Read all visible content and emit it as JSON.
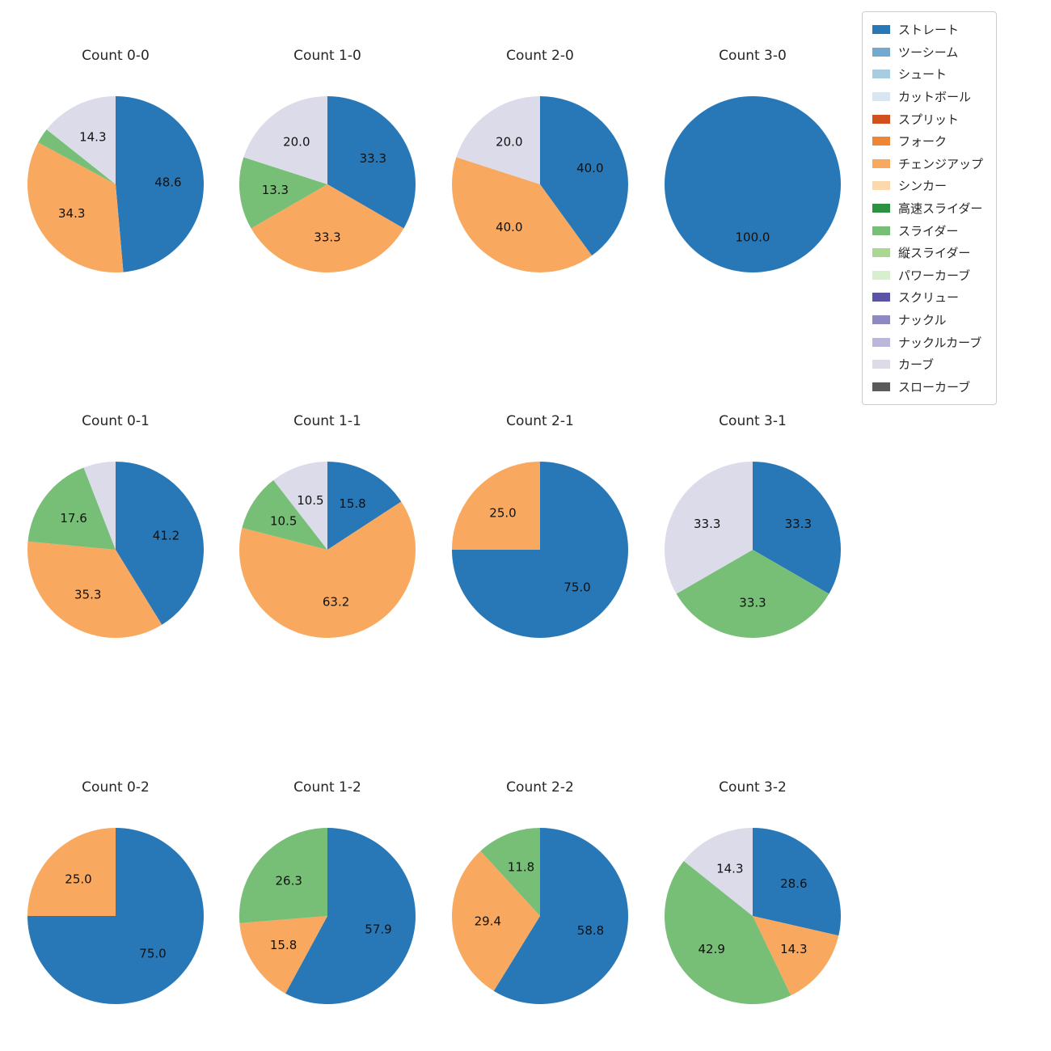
{
  "figure": {
    "background": "#ffffff"
  },
  "legend": {
    "items": [
      {
        "label": "ストレート",
        "color": "#2878b8"
      },
      {
        "label": "ツーシーム",
        "color": "#73a8d0"
      },
      {
        "label": "シュート",
        "color": "#a8cce0"
      },
      {
        "label": "カットボール",
        "color": "#d9e6f2"
      },
      {
        "label": "スプリット",
        "color": "#d2501e"
      },
      {
        "label": "フォーク",
        "color": "#ef8636"
      },
      {
        "label": "チェンジアップ",
        "color": "#f8a95f"
      },
      {
        "label": "シンカー",
        "color": "#fcd9ac"
      },
      {
        "label": "高速スライダー",
        "color": "#2c9141"
      },
      {
        "label": "スライダー",
        "color": "#77bf77"
      },
      {
        "label": "縦スライダー",
        "color": "#aad792"
      },
      {
        "label": "パワーカーブ",
        "color": "#d8efcf"
      },
      {
        "label": "スクリュー",
        "color": "#5b53a3"
      },
      {
        "label": "ナックル",
        "color": "#8e89c0"
      },
      {
        "label": "ナックルカーブ",
        "color": "#bab7d8"
      },
      {
        "label": "カーブ",
        "color": "#dcdbe9"
      },
      {
        "label": "スローカーブ",
        "color": "#5b5b5b"
      }
    ]
  },
  "chart_data": [
    {
      "type": "pie",
      "title": "Count 0-0",
      "slices": [
        {
          "label": "ストレート",
          "value": 48.6,
          "pct_label": "48.6"
        },
        {
          "label": "チェンジアップ",
          "value": 34.3,
          "pct_label": "34.3"
        },
        {
          "label": "スライダー",
          "value": 2.8,
          "pct_label": ""
        },
        {
          "label": "カーブ",
          "value": 14.3,
          "pct_label": "14.3"
        }
      ]
    },
    {
      "type": "pie",
      "title": "Count 1-0",
      "slices": [
        {
          "label": "ストレート",
          "value": 33.3,
          "pct_label": "33.3"
        },
        {
          "label": "チェンジアップ",
          "value": 33.3,
          "pct_label": "33.3"
        },
        {
          "label": "スライダー",
          "value": 13.3,
          "pct_label": "13.3"
        },
        {
          "label": "カーブ",
          "value": 20.0,
          "pct_label": "20.0"
        }
      ]
    },
    {
      "type": "pie",
      "title": "Count 2-0",
      "slices": [
        {
          "label": "ストレート",
          "value": 40.0,
          "pct_label": "40.0"
        },
        {
          "label": "チェンジアップ",
          "value": 40.0,
          "pct_label": "40.0"
        },
        {
          "label": "カーブ",
          "value": 20.0,
          "pct_label": "20.0"
        }
      ]
    },
    {
      "type": "pie",
      "title": "Count 3-0",
      "slices": [
        {
          "label": "ストレート",
          "value": 100.0,
          "pct_label": "100.0"
        }
      ]
    },
    {
      "type": "pie",
      "title": "Count 0-1",
      "slices": [
        {
          "label": "ストレート",
          "value": 41.2,
          "pct_label": "41.2"
        },
        {
          "label": "チェンジアップ",
          "value": 35.3,
          "pct_label": "35.3"
        },
        {
          "label": "スライダー",
          "value": 17.6,
          "pct_label": "17.6"
        },
        {
          "label": "カーブ",
          "value": 5.9,
          "pct_label": ""
        }
      ]
    },
    {
      "type": "pie",
      "title": "Count 1-1",
      "slices": [
        {
          "label": "ストレート",
          "value": 15.8,
          "pct_label": "15.8"
        },
        {
          "label": "チェンジアップ",
          "value": 63.2,
          "pct_label": "63.2"
        },
        {
          "label": "スライダー",
          "value": 10.5,
          "pct_label": "10.5"
        },
        {
          "label": "カーブ",
          "value": 10.5,
          "pct_label": "10.5"
        }
      ]
    },
    {
      "type": "pie",
      "title": "Count 2-1",
      "slices": [
        {
          "label": "ストレート",
          "value": 75.0,
          "pct_label": "75.0"
        },
        {
          "label": "チェンジアップ",
          "value": 25.0,
          "pct_label": "25.0"
        }
      ]
    },
    {
      "type": "pie",
      "title": "Count 3-1",
      "slices": [
        {
          "label": "ストレート",
          "value": 33.3,
          "pct_label": "33.3"
        },
        {
          "label": "スライダー",
          "value": 33.3,
          "pct_label": "33.3"
        },
        {
          "label": "カーブ",
          "value": 33.3,
          "pct_label": "33.3"
        }
      ]
    },
    {
      "type": "pie",
      "title": "Count 0-2",
      "slices": [
        {
          "label": "ストレート",
          "value": 75.0,
          "pct_label": "75.0"
        },
        {
          "label": "チェンジアップ",
          "value": 25.0,
          "pct_label": "25.0"
        }
      ]
    },
    {
      "type": "pie",
      "title": "Count 1-2",
      "slices": [
        {
          "label": "ストレート",
          "value": 57.9,
          "pct_label": "57.9"
        },
        {
          "label": "チェンジアップ",
          "value": 15.8,
          "pct_label": "15.8"
        },
        {
          "label": "スライダー",
          "value": 26.3,
          "pct_label": "26.3"
        }
      ]
    },
    {
      "type": "pie",
      "title": "Count 2-2",
      "slices": [
        {
          "label": "ストレート",
          "value": 58.8,
          "pct_label": "58.8"
        },
        {
          "label": "チェンジアップ",
          "value": 29.4,
          "pct_label": "29.4"
        },
        {
          "label": "スライダー",
          "value": 11.8,
          "pct_label": "11.8"
        }
      ]
    },
    {
      "type": "pie",
      "title": "Count 3-2",
      "slices": [
        {
          "label": "ストレート",
          "value": 28.6,
          "pct_label": "28.6"
        },
        {
          "label": "チェンジアップ",
          "value": 14.3,
          "pct_label": "14.3"
        },
        {
          "label": "スライダー",
          "value": 42.9,
          "pct_label": "42.9"
        },
        {
          "label": "カーブ",
          "value": 14.3,
          "pct_label": "14.3"
        }
      ]
    }
  ]
}
